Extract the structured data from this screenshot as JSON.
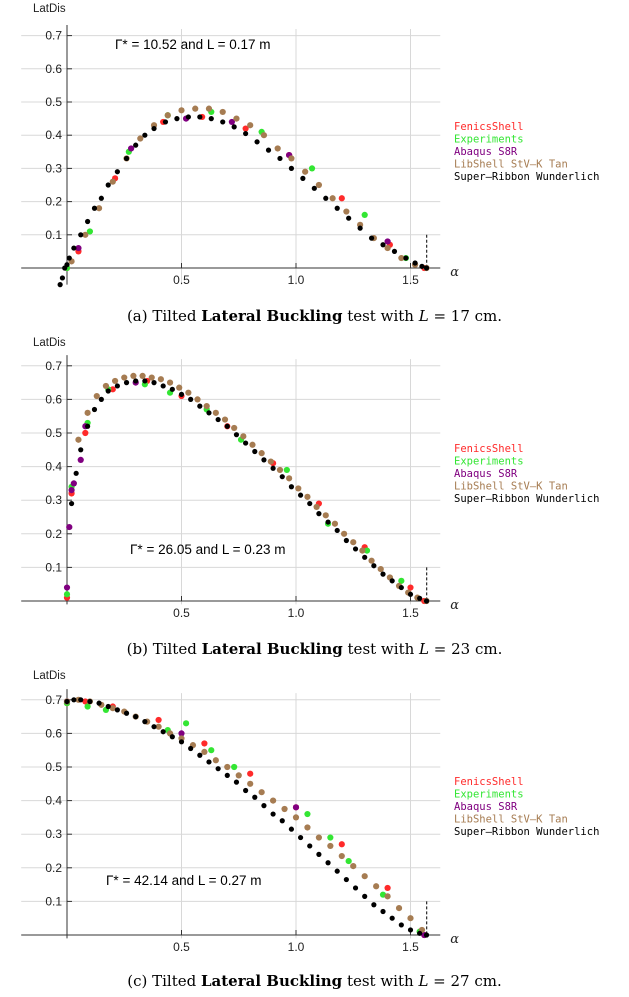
{
  "legend_colors": [
    "#ff2a2a",
    "#33e633",
    "#800080",
    "#a67c52",
    "#000000"
  ],
  "chart_data": [
    {
      "type": "scatter",
      "xlabel": "α",
      "ylabel": "LatDis",
      "annotation": "Γ* = 10.52 and L = 0.17 m",
      "xlim": [
        -0.2,
        1.63
      ],
      "ylim": [
        -0.05,
        0.72
      ],
      "xticks": [
        "0.5",
        "1.0",
        "1.5"
      ],
      "yticks": [
        "0.1",
        "0.2",
        "0.3",
        "0.4",
        "0.5",
        "0.6",
        "0.7"
      ],
      "legend": [
        "FenicsShell",
        "Experiments",
        "Abaqus S8R",
        "LibShell StV–K Tan",
        "Super–Ribbon Wunderlich"
      ],
      "caption": {
        "prefix": "(a) Tilted ",
        "bold": "Lateral Buckling",
        "middle": " test with ",
        "var": "L",
        "suffix": " = 17 cm."
      },
      "series": [
        {
          "name": "FenicsShell",
          "x": [
            0.0,
            0.05,
            0.21,
            0.42,
            0.59,
            0.78,
            0.97,
            1.2,
            1.41,
            1.56
          ],
          "y": [
            0.0,
            0.05,
            0.27,
            0.44,
            0.455,
            0.42,
            0.34,
            0.21,
            0.07,
            0.0
          ]
        },
        {
          "name": "Experiments",
          "x": [
            0.0,
            0.1,
            0.27,
            0.44,
            0.63,
            0.85,
            1.07,
            1.3,
            1.48
          ],
          "y": [
            0.0,
            0.11,
            0.35,
            0.46,
            0.47,
            0.41,
            0.3,
            0.16,
            0.03
          ]
        },
        {
          "name": "Abaqus S8R",
          "x": [
            0.05,
            0.28,
            0.52,
            0.72,
            0.97,
            1.4
          ],
          "y": [
            0.06,
            0.36,
            0.45,
            0.44,
            0.34,
            0.08
          ]
        },
        {
          "name": "LibShell StV–K Tan",
          "x": [
            0.02,
            0.08,
            0.14,
            0.2,
            0.26,
            0.32,
            0.38,
            0.44,
            0.5,
            0.56,
            0.62,
            0.68,
            0.74,
            0.8,
            0.86,
            0.92,
            0.98,
            1.04,
            1.1,
            1.16,
            1.22,
            1.28,
            1.34,
            1.4,
            1.46,
            1.52,
            1.57
          ],
          "y": [
            0.02,
            0.1,
            0.18,
            0.26,
            0.33,
            0.39,
            0.43,
            0.46,
            0.475,
            0.48,
            0.48,
            0.47,
            0.45,
            0.43,
            0.4,
            0.36,
            0.33,
            0.29,
            0.25,
            0.21,
            0.17,
            0.13,
            0.09,
            0.06,
            0.03,
            0.01,
            0.0
          ]
        },
        {
          "name": "Super–Ribbon Wunderlich",
          "x": [
            -0.03,
            -0.02,
            -0.01,
            0.0,
            0.01,
            0.03,
            0.06,
            0.09,
            0.12,
            0.15,
            0.18,
            0.22,
            0.26,
            0.3,
            0.34,
            0.38,
            0.43,
            0.48,
            0.53,
            0.58,
            0.63,
            0.68,
            0.73,
            0.78,
            0.83,
            0.88,
            0.93,
            0.98,
            1.03,
            1.08,
            1.13,
            1.18,
            1.23,
            1.28,
            1.33,
            1.38,
            1.43,
            1.48,
            1.52,
            1.55,
            1.57
          ],
          "y": [
            -0.05,
            -0.03,
            0.0,
            0.01,
            0.03,
            0.06,
            0.1,
            0.14,
            0.18,
            0.21,
            0.25,
            0.29,
            0.33,
            0.37,
            0.4,
            0.42,
            0.44,
            0.45,
            0.455,
            0.455,
            0.45,
            0.44,
            0.425,
            0.405,
            0.38,
            0.355,
            0.33,
            0.3,
            0.27,
            0.24,
            0.21,
            0.18,
            0.15,
            0.12,
            0.09,
            0.07,
            0.05,
            0.03,
            0.015,
            0.005,
            0.0
          ]
        }
      ]
    },
    {
      "type": "scatter",
      "xlabel": "α",
      "ylabel": "LatDis",
      "annotation": "Γ* = 26.05 and L = 0.23 m",
      "xlim": [
        -0.2,
        1.63
      ],
      "ylim": [
        -0.01,
        0.72
      ],
      "xticks": [
        "0.5",
        "1.0",
        "1.5"
      ],
      "yticks": [
        "0.1",
        "0.2",
        "0.3",
        "0.4",
        "0.5",
        "0.6",
        "0.7"
      ],
      "legend": [
        "FenicsShell",
        "Experiments",
        "Abaqus S8R",
        "LibShell StV–K Tan",
        "Super–Ribbon Wunderlich"
      ],
      "caption": {
        "prefix": "(b) Tilted ",
        "bold": "Lateral Buckling",
        "middle": " test with ",
        "var": "L",
        "suffix": " = 23 cm."
      },
      "series": [
        {
          "name": "FenicsShell",
          "x": [
            0.0,
            0.02,
            0.08,
            0.2,
            0.35,
            0.5,
            0.7,
            0.9,
            1.1,
            1.3,
            1.5,
            1.56
          ],
          "y": [
            0.01,
            0.32,
            0.5,
            0.63,
            0.655,
            0.61,
            0.52,
            0.41,
            0.29,
            0.16,
            0.04,
            0.0
          ]
        },
        {
          "name": "Experiments",
          "x": [
            0.0,
            0.02,
            0.09,
            0.18,
            0.34,
            0.45,
            0.61,
            0.76,
            0.96,
            1.14,
            1.31,
            1.46
          ],
          "y": [
            0.02,
            0.34,
            0.53,
            0.63,
            0.645,
            0.62,
            0.57,
            0.48,
            0.39,
            0.23,
            0.15,
            0.06
          ]
        },
        {
          "name": "Abaqus S8R",
          "x": [
            0.0,
            0.01,
            0.02,
            0.03,
            0.06,
            0.08,
            0.3
          ],
          "y": [
            0.04,
            0.22,
            0.33,
            0.35,
            0.42,
            0.52,
            0.65
          ]
        },
        {
          "name": "LibShell StV–K Tan",
          "x": [
            0.05,
            0.09,
            0.13,
            0.17,
            0.21,
            0.25,
            0.29,
            0.33,
            0.37,
            0.41,
            0.45,
            0.49,
            0.53,
            0.57,
            0.61,
            0.65,
            0.69,
            0.73,
            0.77,
            0.81,
            0.85,
            0.89,
            0.93,
            0.97,
            1.01,
            1.05,
            1.09,
            1.13,
            1.17,
            1.21,
            1.25,
            1.29,
            1.33,
            1.37,
            1.41,
            1.45,
            1.49,
            1.53,
            1.57
          ],
          "y": [
            0.48,
            0.56,
            0.61,
            0.64,
            0.655,
            0.665,
            0.67,
            0.67,
            0.665,
            0.66,
            0.65,
            0.635,
            0.62,
            0.6,
            0.58,
            0.56,
            0.54,
            0.515,
            0.49,
            0.465,
            0.44,
            0.415,
            0.39,
            0.365,
            0.335,
            0.31,
            0.28,
            0.255,
            0.23,
            0.2,
            0.175,
            0.15,
            0.12,
            0.095,
            0.07,
            0.045,
            0.025,
            0.01,
            0.0
          ]
        },
        {
          "name": "Super–Ribbon Wunderlich",
          "x": [
            0.02,
            0.04,
            0.06,
            0.09,
            0.12,
            0.15,
            0.18,
            0.22,
            0.26,
            0.3,
            0.34,
            0.38,
            0.42,
            0.46,
            0.5,
            0.54,
            0.58,
            0.62,
            0.66,
            0.7,
            0.74,
            0.78,
            0.82,
            0.86,
            0.9,
            0.94,
            0.98,
            1.02,
            1.06,
            1.1,
            1.14,
            1.18,
            1.22,
            1.26,
            1.3,
            1.34,
            1.38,
            1.42,
            1.46,
            1.5,
            1.54,
            1.57
          ],
          "y": [
            0.29,
            0.38,
            0.45,
            0.52,
            0.57,
            0.6,
            0.625,
            0.64,
            0.65,
            0.655,
            0.655,
            0.65,
            0.64,
            0.63,
            0.615,
            0.6,
            0.58,
            0.56,
            0.54,
            0.52,
            0.495,
            0.47,
            0.445,
            0.42,
            0.395,
            0.37,
            0.34,
            0.315,
            0.29,
            0.26,
            0.235,
            0.21,
            0.18,
            0.155,
            0.13,
            0.105,
            0.08,
            0.06,
            0.04,
            0.02,
            0.008,
            0.0
          ]
        }
      ]
    },
    {
      "type": "scatter",
      "xlabel": "α",
      "ylabel": "LatDis",
      "annotation": "Γ* = 42.14 and L = 0.27 m",
      "xlim": [
        -0.2,
        1.63
      ],
      "ylim": [
        -0.01,
        0.72
      ],
      "xticks": [
        "0.5",
        "1.0",
        "1.5"
      ],
      "yticks": [
        "0.1",
        "0.2",
        "0.3",
        "0.4",
        "0.5",
        "0.6",
        "0.7"
      ],
      "legend": [
        "FenicsShell",
        "Experiments",
        "Abaqus S8R",
        "LibShell StV–K Tan",
        "Super–Ribbon Wunderlich"
      ],
      "caption": {
        "prefix": "(c) Tilted ",
        "bold": "Lateral Buckling",
        "middle": " test with ",
        "var": "L",
        "suffix": " = 27 cm."
      },
      "series": [
        {
          "name": "FenicsShell",
          "x": [
            0.0,
            0.08,
            0.2,
            0.4,
            0.6,
            0.8,
            1.0,
            1.2,
            1.4,
            1.56
          ],
          "y": [
            0.69,
            0.695,
            0.68,
            0.64,
            0.57,
            0.48,
            0.38,
            0.27,
            0.14,
            0.0
          ]
        },
        {
          "name": "Experiments",
          "x": [
            0.0,
            0.09,
            0.17,
            0.44,
            0.52,
            0.63,
            0.73,
            1.05,
            1.15,
            1.23,
            1.38,
            1.54
          ],
          "y": [
            0.69,
            0.68,
            0.67,
            0.61,
            0.63,
            0.55,
            0.5,
            0.36,
            0.29,
            0.22,
            0.12,
            0.01
          ]
        },
        {
          "name": "Abaqus S8R",
          "x": [
            0.0,
            0.5,
            1.0,
            1.56
          ],
          "y": [
            0.695,
            0.6,
            0.38,
            0.0
          ]
        },
        {
          "name": "LibShell StV–K Tan",
          "x": [
            0.0,
            0.05,
            0.1,
            0.15,
            0.2,
            0.25,
            0.3,
            0.35,
            0.4,
            0.45,
            0.5,
            0.55,
            0.6,
            0.65,
            0.7,
            0.75,
            0.8,
            0.85,
            0.9,
            0.95,
            1.0,
            1.05,
            1.1,
            1.15,
            1.2,
            1.25,
            1.3,
            1.35,
            1.4,
            1.45,
            1.5,
            1.55
          ],
          "y": [
            0.695,
            0.7,
            0.695,
            0.685,
            0.675,
            0.665,
            0.65,
            0.635,
            0.62,
            0.6,
            0.585,
            0.565,
            0.545,
            0.52,
            0.5,
            0.475,
            0.45,
            0.425,
            0.4,
            0.375,
            0.35,
            0.32,
            0.29,
            0.265,
            0.235,
            0.205,
            0.175,
            0.145,
            0.115,
            0.08,
            0.05,
            0.015
          ]
        },
        {
          "name": "Super–Ribbon Wunderlich",
          "x": [
            0.0,
            0.03,
            0.06,
            0.1,
            0.14,
            0.18,
            0.22,
            0.26,
            0.3,
            0.34,
            0.38,
            0.42,
            0.46,
            0.5,
            0.54,
            0.58,
            0.62,
            0.66,
            0.7,
            0.74,
            0.78,
            0.82,
            0.86,
            0.9,
            0.94,
            0.98,
            1.02,
            1.06,
            1.1,
            1.14,
            1.18,
            1.22,
            1.26,
            1.3,
            1.34,
            1.38,
            1.42,
            1.46,
            1.5,
            1.54,
            1.57
          ],
          "y": [
            0.695,
            0.7,
            0.7,
            0.695,
            0.69,
            0.68,
            0.67,
            0.66,
            0.65,
            0.635,
            0.62,
            0.605,
            0.59,
            0.575,
            0.555,
            0.535,
            0.515,
            0.495,
            0.475,
            0.455,
            0.43,
            0.41,
            0.385,
            0.36,
            0.34,
            0.315,
            0.29,
            0.265,
            0.24,
            0.215,
            0.19,
            0.165,
            0.14,
            0.115,
            0.09,
            0.07,
            0.05,
            0.03,
            0.015,
            0.005,
            0.0
          ]
        }
      ]
    }
  ]
}
